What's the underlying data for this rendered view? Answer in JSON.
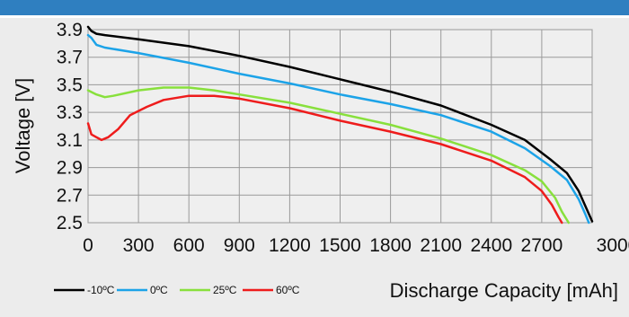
{
  "chart_data": {
    "type": "line",
    "xlabel": "Discharge Capacity [mAh]",
    "ylabel": "Voltage [V]",
    "xlim": [
      0,
      3000
    ],
    "ylim": [
      2.5,
      3.9
    ],
    "x_ticks": [
      "0",
      "300",
      "600",
      "900",
      "1200",
      "1500",
      "1800",
      "2100",
      "2400",
      "2700",
      "3000"
    ],
    "y_ticks": [
      "3.9",
      "3.7",
      "3.5",
      "3.3",
      "3.1",
      "2.9",
      "2.7",
      "2.5"
    ],
    "grid": true,
    "legend_position": "bottom-left",
    "series": [
      {
        "name": "-10ºC",
        "color": "#000000",
        "points": [
          [
            0,
            3.92
          ],
          [
            20,
            3.89
          ],
          [
            50,
            3.87
          ],
          [
            100,
            3.86
          ],
          [
            300,
            3.83
          ],
          [
            600,
            3.78
          ],
          [
            900,
            3.71
          ],
          [
            1200,
            3.63
          ],
          [
            1500,
            3.54
          ],
          [
            1800,
            3.45
          ],
          [
            2100,
            3.35
          ],
          [
            2400,
            3.21
          ],
          [
            2600,
            3.1
          ],
          [
            2750,
            2.96
          ],
          [
            2850,
            2.86
          ],
          [
            2920,
            2.73
          ],
          [
            2960,
            2.62
          ],
          [
            3000,
            2.51
          ]
        ]
      },
      {
        "name": "0ºC",
        "color": "#1ca3e8",
        "points": [
          [
            0,
            3.86
          ],
          [
            20,
            3.84
          ],
          [
            50,
            3.79
          ],
          [
            100,
            3.77
          ],
          [
            300,
            3.73
          ],
          [
            600,
            3.66
          ],
          [
            900,
            3.58
          ],
          [
            1200,
            3.51
          ],
          [
            1500,
            3.43
          ],
          [
            1800,
            3.36
          ],
          [
            2100,
            3.28
          ],
          [
            2400,
            3.16
          ],
          [
            2600,
            3.04
          ],
          [
            2750,
            2.91
          ],
          [
            2850,
            2.81
          ],
          [
            2920,
            2.67
          ],
          [
            2960,
            2.56
          ],
          [
            2980,
            2.5
          ]
        ]
      },
      {
        "name": "25ºC",
        "color": "#88e03c",
        "points": [
          [
            0,
            3.46
          ],
          [
            50,
            3.43
          ],
          [
            100,
            3.41
          ],
          [
            150,
            3.42
          ],
          [
            300,
            3.46
          ],
          [
            450,
            3.48
          ],
          [
            600,
            3.48
          ],
          [
            750,
            3.46
          ],
          [
            900,
            3.43
          ],
          [
            1200,
            3.37
          ],
          [
            1500,
            3.29
          ],
          [
            1800,
            3.21
          ],
          [
            2100,
            3.11
          ],
          [
            2400,
            2.99
          ],
          [
            2600,
            2.88
          ],
          [
            2700,
            2.8
          ],
          [
            2780,
            2.68
          ],
          [
            2820,
            2.58
          ],
          [
            2860,
            2.5
          ]
        ]
      },
      {
        "name": "60ºC",
        "color": "#ee1c1c",
        "points": [
          [
            0,
            3.22
          ],
          [
            20,
            3.14
          ],
          [
            50,
            3.12
          ],
          [
            80,
            3.1
          ],
          [
            120,
            3.12
          ],
          [
            180,
            3.18
          ],
          [
            250,
            3.28
          ],
          [
            350,
            3.34
          ],
          [
            450,
            3.39
          ],
          [
            600,
            3.42
          ],
          [
            750,
            3.42
          ],
          [
            900,
            3.4
          ],
          [
            1200,
            3.33
          ],
          [
            1500,
            3.24
          ],
          [
            1800,
            3.16
          ],
          [
            2100,
            3.07
          ],
          [
            2400,
            2.95
          ],
          [
            2600,
            2.83
          ],
          [
            2700,
            2.73
          ],
          [
            2760,
            2.63
          ],
          [
            2800,
            2.54
          ],
          [
            2820,
            2.5
          ]
        ]
      }
    ]
  }
}
